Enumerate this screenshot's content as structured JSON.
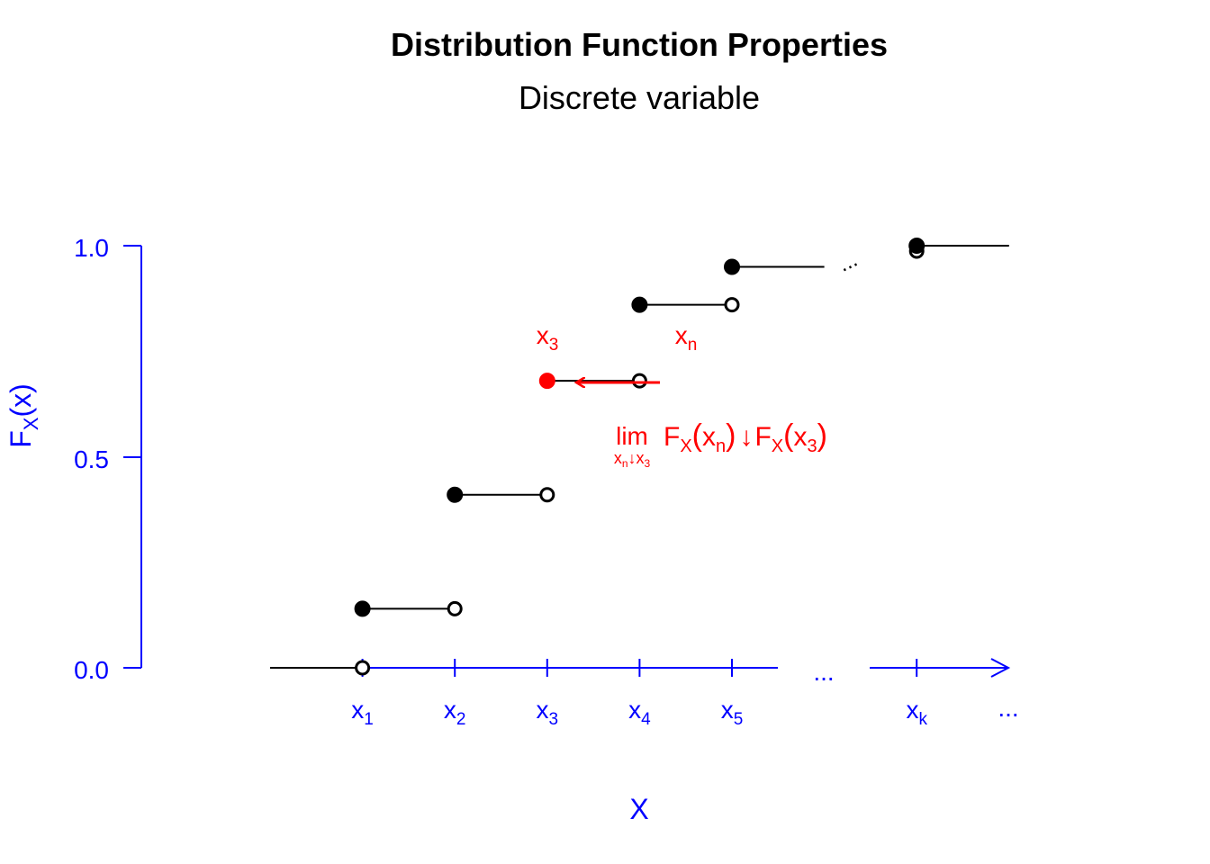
{
  "chart_data": {
    "type": "line",
    "title": "Distribution Function Properties",
    "subtitle": "Discrete variable",
    "xlabel": "X",
    "ylabel": {
      "main": "F",
      "sub": "X",
      "rest": "(x)"
    },
    "ylim": [
      0,
      1
    ],
    "y_ticks": [
      "0.0",
      "0.5",
      "1.0"
    ],
    "x_ticks": [
      {
        "base": "x",
        "sub": "1"
      },
      {
        "base": "x",
        "sub": "2"
      },
      {
        "base": "x",
        "sub": "3"
      },
      {
        "base": "x",
        "sub": "4"
      },
      {
        "base": "x",
        "sub": "5"
      },
      {
        "base": "x",
        "sub": "k"
      }
    ],
    "x_positions": [
      1,
      2,
      3,
      4,
      5,
      7
    ],
    "xlim": [
      0,
      8
    ],
    "axis_gap_label": "...",
    "axis_end_label": "...",
    "upper_dots": "...",
    "steps": [
      {
        "x_start": 1,
        "x_end": 2,
        "y": 0.14
      },
      {
        "x_start": 2,
        "x_end": 3,
        "y": 0.41
      },
      {
        "x_start": 3,
        "x_end": 4,
        "y": 0.68
      },
      {
        "x_start": 4,
        "x_end": 5,
        "y": 0.86
      },
      {
        "x_start": 5,
        "x_end": 6,
        "y": 0.95,
        "open_end": false
      },
      {
        "x_start": 7,
        "x_end": 8,
        "y": 1.0,
        "open_end": false
      }
    ],
    "highlight": {
      "step_index": 2,
      "color": "#ff0000",
      "label_x3": {
        "base": "x",
        "sub": "3"
      },
      "label_xn": {
        "base": "x",
        "sub": "n"
      },
      "formula": {
        "lim": "lim",
        "lim_sub": {
          "a": "x",
          "a_sub": "n",
          "arrow": "↓",
          "b": "x",
          "b_sub": "3"
        },
        "lhs": {
          "F": "F",
          "F_sub": "X",
          "arg": "x",
          "arg_sub": "n"
        },
        "arrow": "↓",
        "rhs": {
          "F": "F",
          "F_sub": "X",
          "arg": "x",
          "arg_sub": "3"
        }
      }
    },
    "colors": {
      "axis": "#0000ff",
      "steps": "#000000",
      "highlight": "#ff0000"
    }
  }
}
